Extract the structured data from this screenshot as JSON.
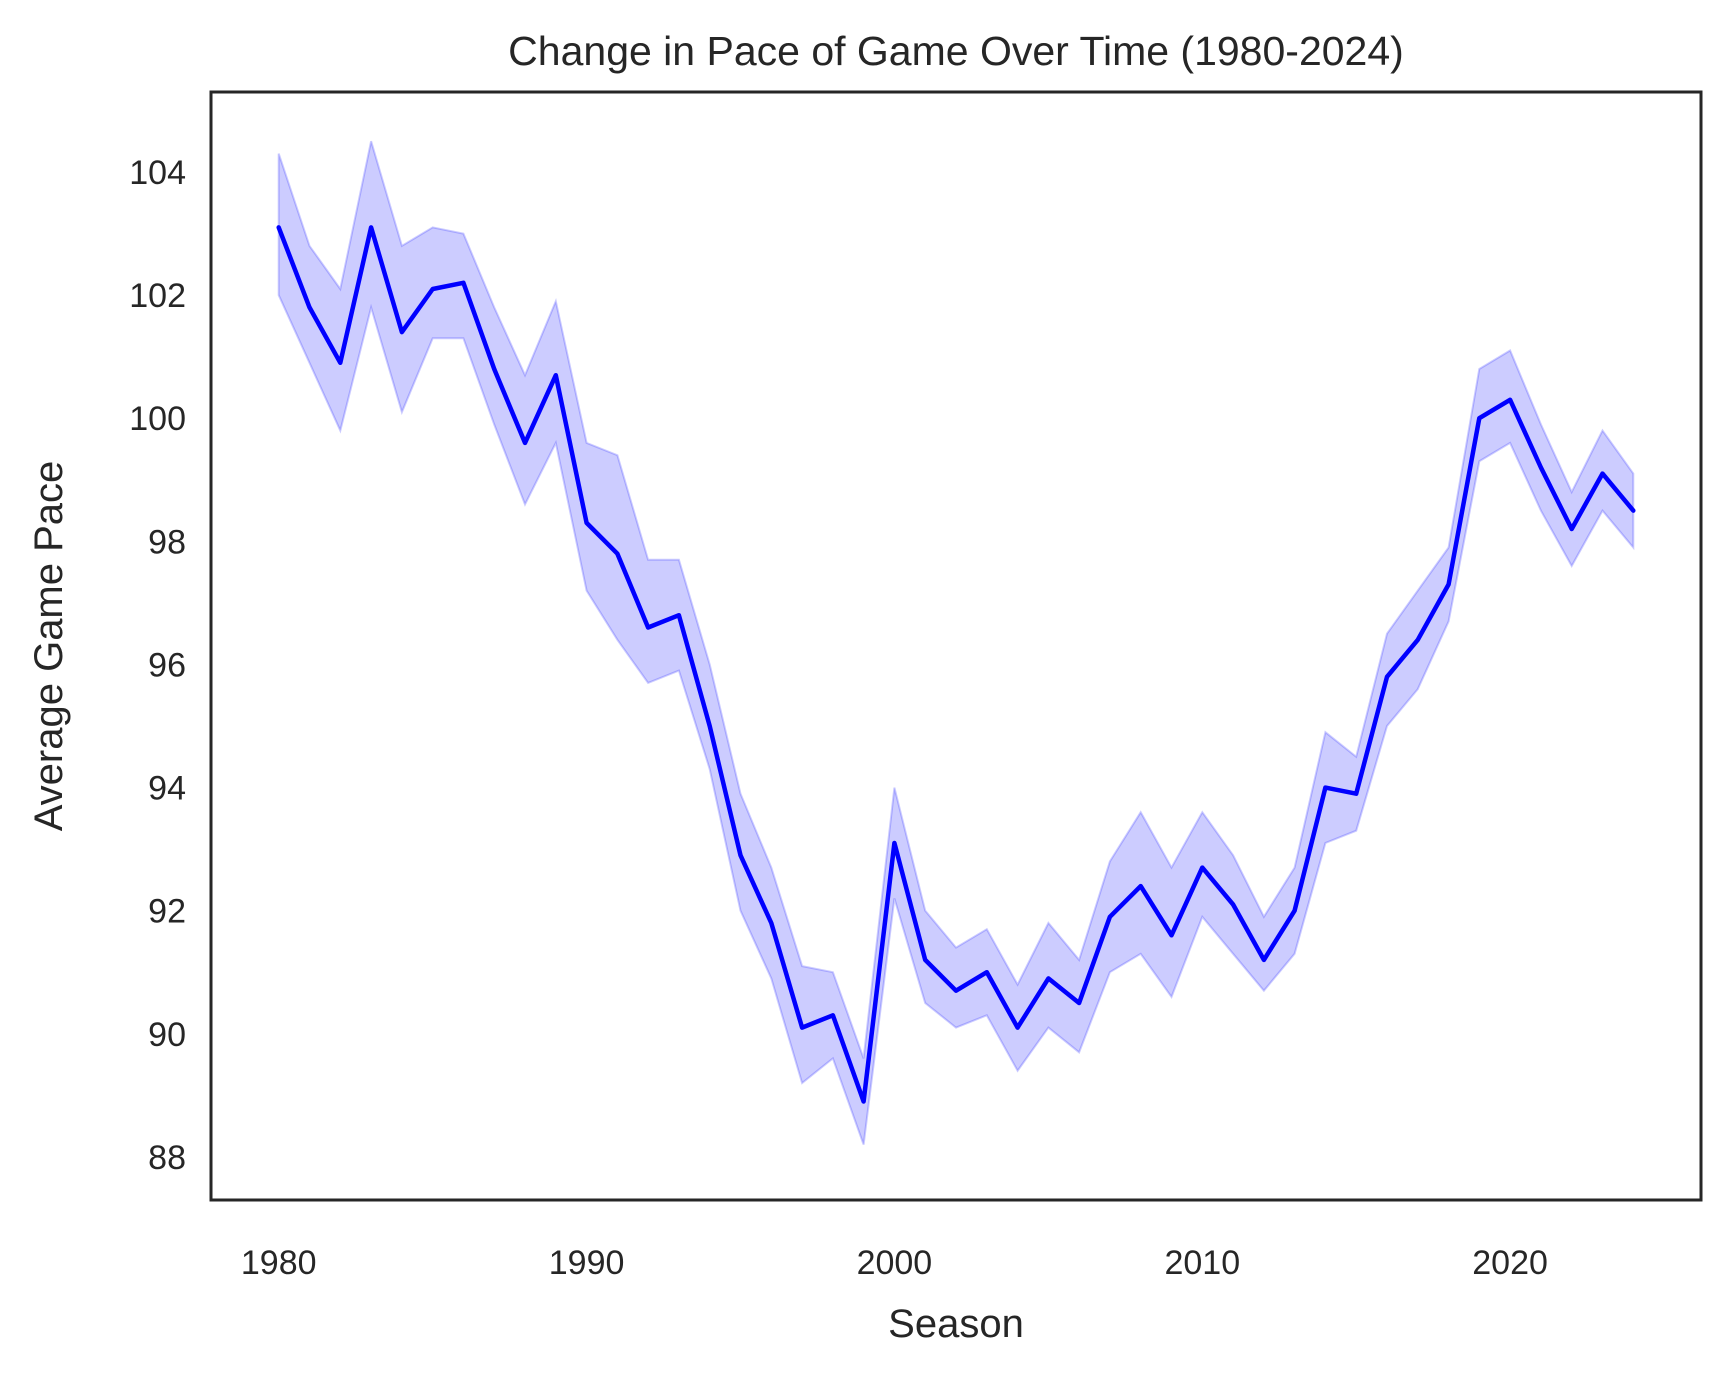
{
  "chart_data": {
    "type": "line",
    "title": "Change in Pace of Game Over Time (1980-2024)",
    "xlabel": "Season",
    "ylabel": "Average Game Pace",
    "xlim": [
      1977.8,
      2026.2
    ],
    "ylim": [
      87.3,
      105.3
    ],
    "xticks": [
      1980,
      1990,
      2000,
      2010,
      2020
    ],
    "yticks": [
      88,
      90,
      92,
      94,
      96,
      98,
      100,
      102,
      104
    ],
    "grid": false,
    "legend": "none",
    "colors": {
      "line": "#0000ff",
      "band": "#0000ff",
      "axes": "#262626",
      "background": "#ffffff"
    },
    "series": [
      {
        "x": [
          1980,
          1981,
          1982,
          1983,
          1984,
          1985,
          1986,
          1987,
          1988,
          1989,
          1990,
          1991,
          1992,
          1993,
          1994,
          1995,
          1996,
          1997,
          1998,
          1999,
          2000,
          2001,
          2002,
          2003,
          2004,
          2005,
          2006,
          2007,
          2008,
          2009,
          2010,
          2011,
          2012,
          2013,
          2014,
          2015,
          2016,
          2017,
          2018,
          2019,
          2020,
          2021,
          2022,
          2023,
          2024
        ],
        "y": [
          103.1,
          101.8,
          100.9,
          103.1,
          101.4,
          102.1,
          102.2,
          100.8,
          99.6,
          100.7,
          98.3,
          97.8,
          96.6,
          96.8,
          95.0,
          92.9,
          91.8,
          90.1,
          90.3,
          88.9,
          93.1,
          91.2,
          90.7,
          91.0,
          90.1,
          90.9,
          90.5,
          91.9,
          92.4,
          91.6,
          92.7,
          92.1,
          91.2,
          92.0,
          94.0,
          93.9,
          95.8,
          96.4,
          97.3,
          100.0,
          100.3,
          99.2,
          98.2,
          99.1,
          98.5
        ],
        "lower": [
          102.0,
          100.9,
          99.8,
          101.8,
          100.1,
          101.3,
          101.3,
          99.9,
          98.6,
          99.6,
          97.2,
          96.4,
          95.7,
          95.9,
          94.3,
          92.0,
          90.9,
          89.2,
          89.6,
          88.2,
          92.2,
          90.5,
          90.1,
          90.3,
          89.4,
          90.1,
          89.7,
          91.0,
          91.3,
          90.6,
          91.9,
          91.3,
          90.7,
          91.3,
          93.1,
          93.3,
          95.0,
          95.6,
          96.7,
          99.3,
          99.6,
          98.5,
          97.6,
          98.5,
          97.9
        ],
        "upper": [
          104.3,
          102.8,
          102.1,
          104.5,
          102.8,
          103.1,
          103.0,
          101.8,
          100.7,
          101.9,
          99.6,
          99.4,
          97.7,
          97.7,
          96.0,
          93.9,
          92.7,
          91.1,
          91.0,
          89.6,
          94.0,
          92.0,
          91.4,
          91.7,
          90.8,
          91.8,
          91.2,
          92.8,
          93.6,
          92.7,
          93.6,
          92.9,
          91.9,
          92.7,
          94.9,
          94.5,
          96.5,
          97.2,
          97.9,
          100.8,
          101.1,
          99.9,
          98.8,
          99.8,
          99.1
        ]
      }
    ]
  }
}
